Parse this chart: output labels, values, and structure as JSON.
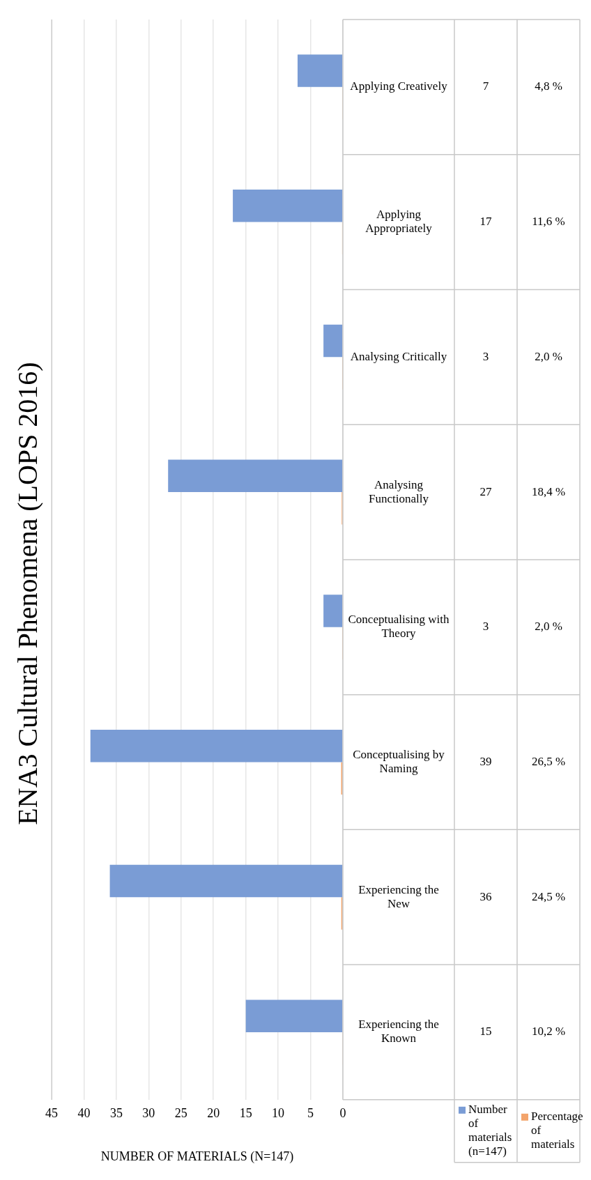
{
  "chart_data": {
    "type": "bar",
    "orientation": "horizontal",
    "title": "ENA3 Cultural Phenomena (LOPS 2016)",
    "xlabel": "NUMBER OF MATERIALS (N=147)",
    "categories": [
      "Applying Creatively",
      "Applying Appropriately",
      "Analysing Critically",
      "Analysing Functionally",
      "Conceptualising with Theory",
      "Conceptualising by Naming",
      "Experiencing the New",
      "Experiencing the Known"
    ],
    "series": [
      {
        "name": "Number of materials (n=147)",
        "color": "#7a9cd5",
        "values": [
          7,
          17,
          3,
          27,
          3,
          39,
          36,
          15
        ],
        "value_labels": [
          "7",
          "17",
          "3",
          "27",
          "3",
          "39",
          "36",
          "15"
        ]
      },
      {
        "name": "Percentage of materials",
        "color": "#f3a46b",
        "values": [
          0.048,
          0.116,
          0.02,
          0.184,
          0.02,
          0.265,
          0.245,
          0.102
        ],
        "value_labels": [
          "4,8 %",
          "11,6 %",
          "2,0 %",
          "18,4 %",
          "2,0 %",
          "26,5 %",
          "24,5 %",
          "10,2 %"
        ]
      }
    ],
    "xlim": [
      45,
      0
    ],
    "xticks": [
      0,
      5,
      10,
      15,
      20,
      25,
      30,
      35,
      40,
      45
    ],
    "grid": "x",
    "legend": "bottom right"
  }
}
